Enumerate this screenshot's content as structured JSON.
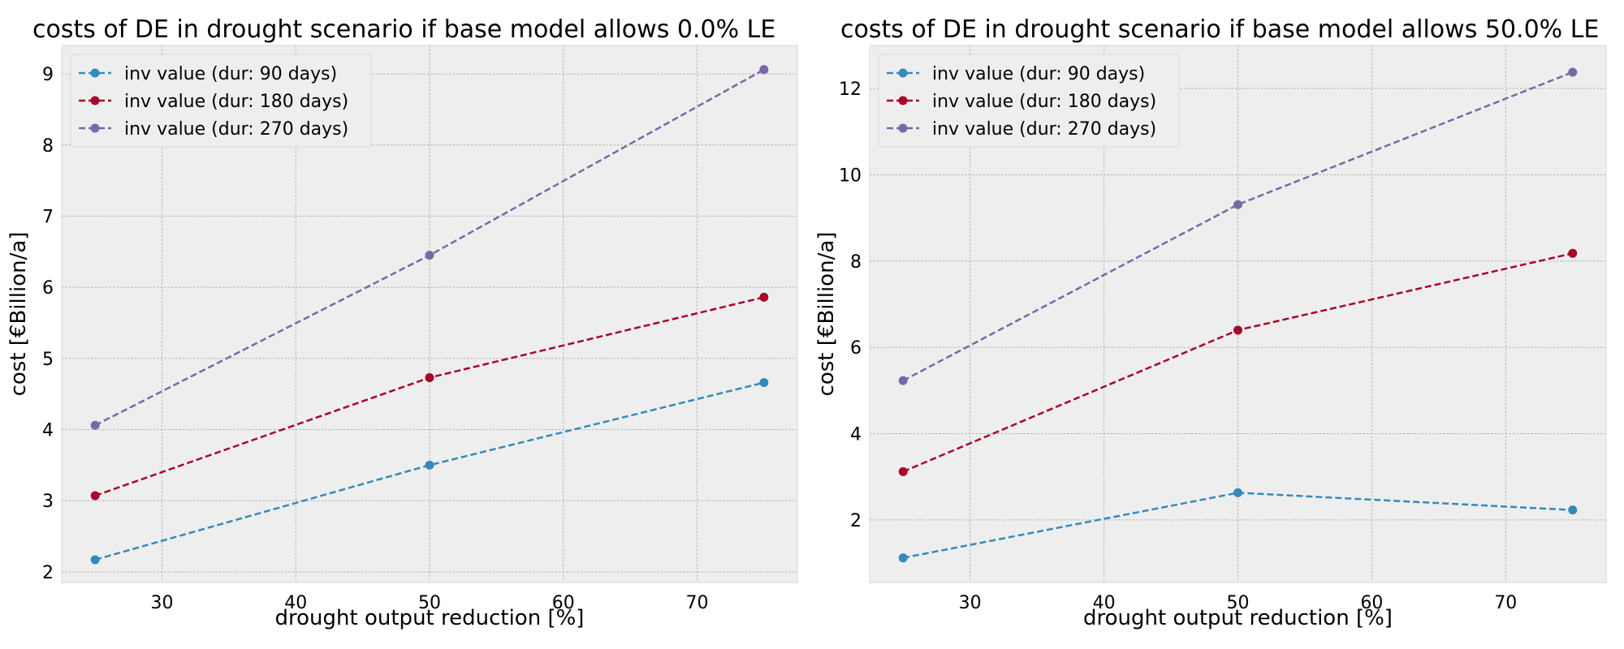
{
  "chart_data": [
    {
      "type": "line",
      "title": "costs of DE in drought scenario if base model allows 0.0% LE",
      "xlabel": "drought output reduction [%]",
      "ylabel": "cost [€Billion/a]",
      "x": [
        25,
        50,
        75
      ],
      "xlim": [
        22.5,
        77.5
      ],
      "ylim": [
        1.85,
        9.4
      ],
      "xticks": [
        30,
        40,
        50,
        60,
        70
      ],
      "yticks": [
        2,
        3,
        4,
        5,
        6,
        7,
        8,
        9
      ],
      "grid": true,
      "legend_position": "top-left",
      "series": [
        {
          "name": "inv value (dur: 90 days)",
          "color": "#348abd",
          "values": [
            2.17,
            3.5,
            4.66
          ]
        },
        {
          "name": "inv value (dur: 180 days)",
          "color": "#a60628",
          "values": [
            3.07,
            4.73,
            5.86
          ]
        },
        {
          "name": "inv value (dur: 270 days)",
          "color": "#7a68a6",
          "values": [
            4.06,
            6.45,
            9.06
          ]
        }
      ]
    },
    {
      "type": "line",
      "title": "costs of DE in drought scenario if base model allows 50.0% LE",
      "xlabel": "drought output reduction [%]",
      "ylabel": "cost [€Billion/a]",
      "x": [
        25,
        50,
        75
      ],
      "xlim": [
        22.5,
        77.5
      ],
      "ylim": [
        0.55,
        13.0
      ],
      "xticks": [
        30,
        40,
        50,
        60,
        70
      ],
      "yticks": [
        2,
        4,
        6,
        8,
        10,
        12
      ],
      "grid": true,
      "legend_position": "top-left",
      "series": [
        {
          "name": "inv value (dur: 90 days)",
          "color": "#348abd",
          "values": [
            1.12,
            2.63,
            2.23
          ]
        },
        {
          "name": "inv value (dur: 180 days)",
          "color": "#a60628",
          "values": [
            3.12,
            6.4,
            8.18
          ]
        },
        {
          "name": "inv value (dur: 270 days)",
          "color": "#7a68a6",
          "values": [
            5.23,
            9.31,
            12.38
          ]
        }
      ]
    }
  ]
}
